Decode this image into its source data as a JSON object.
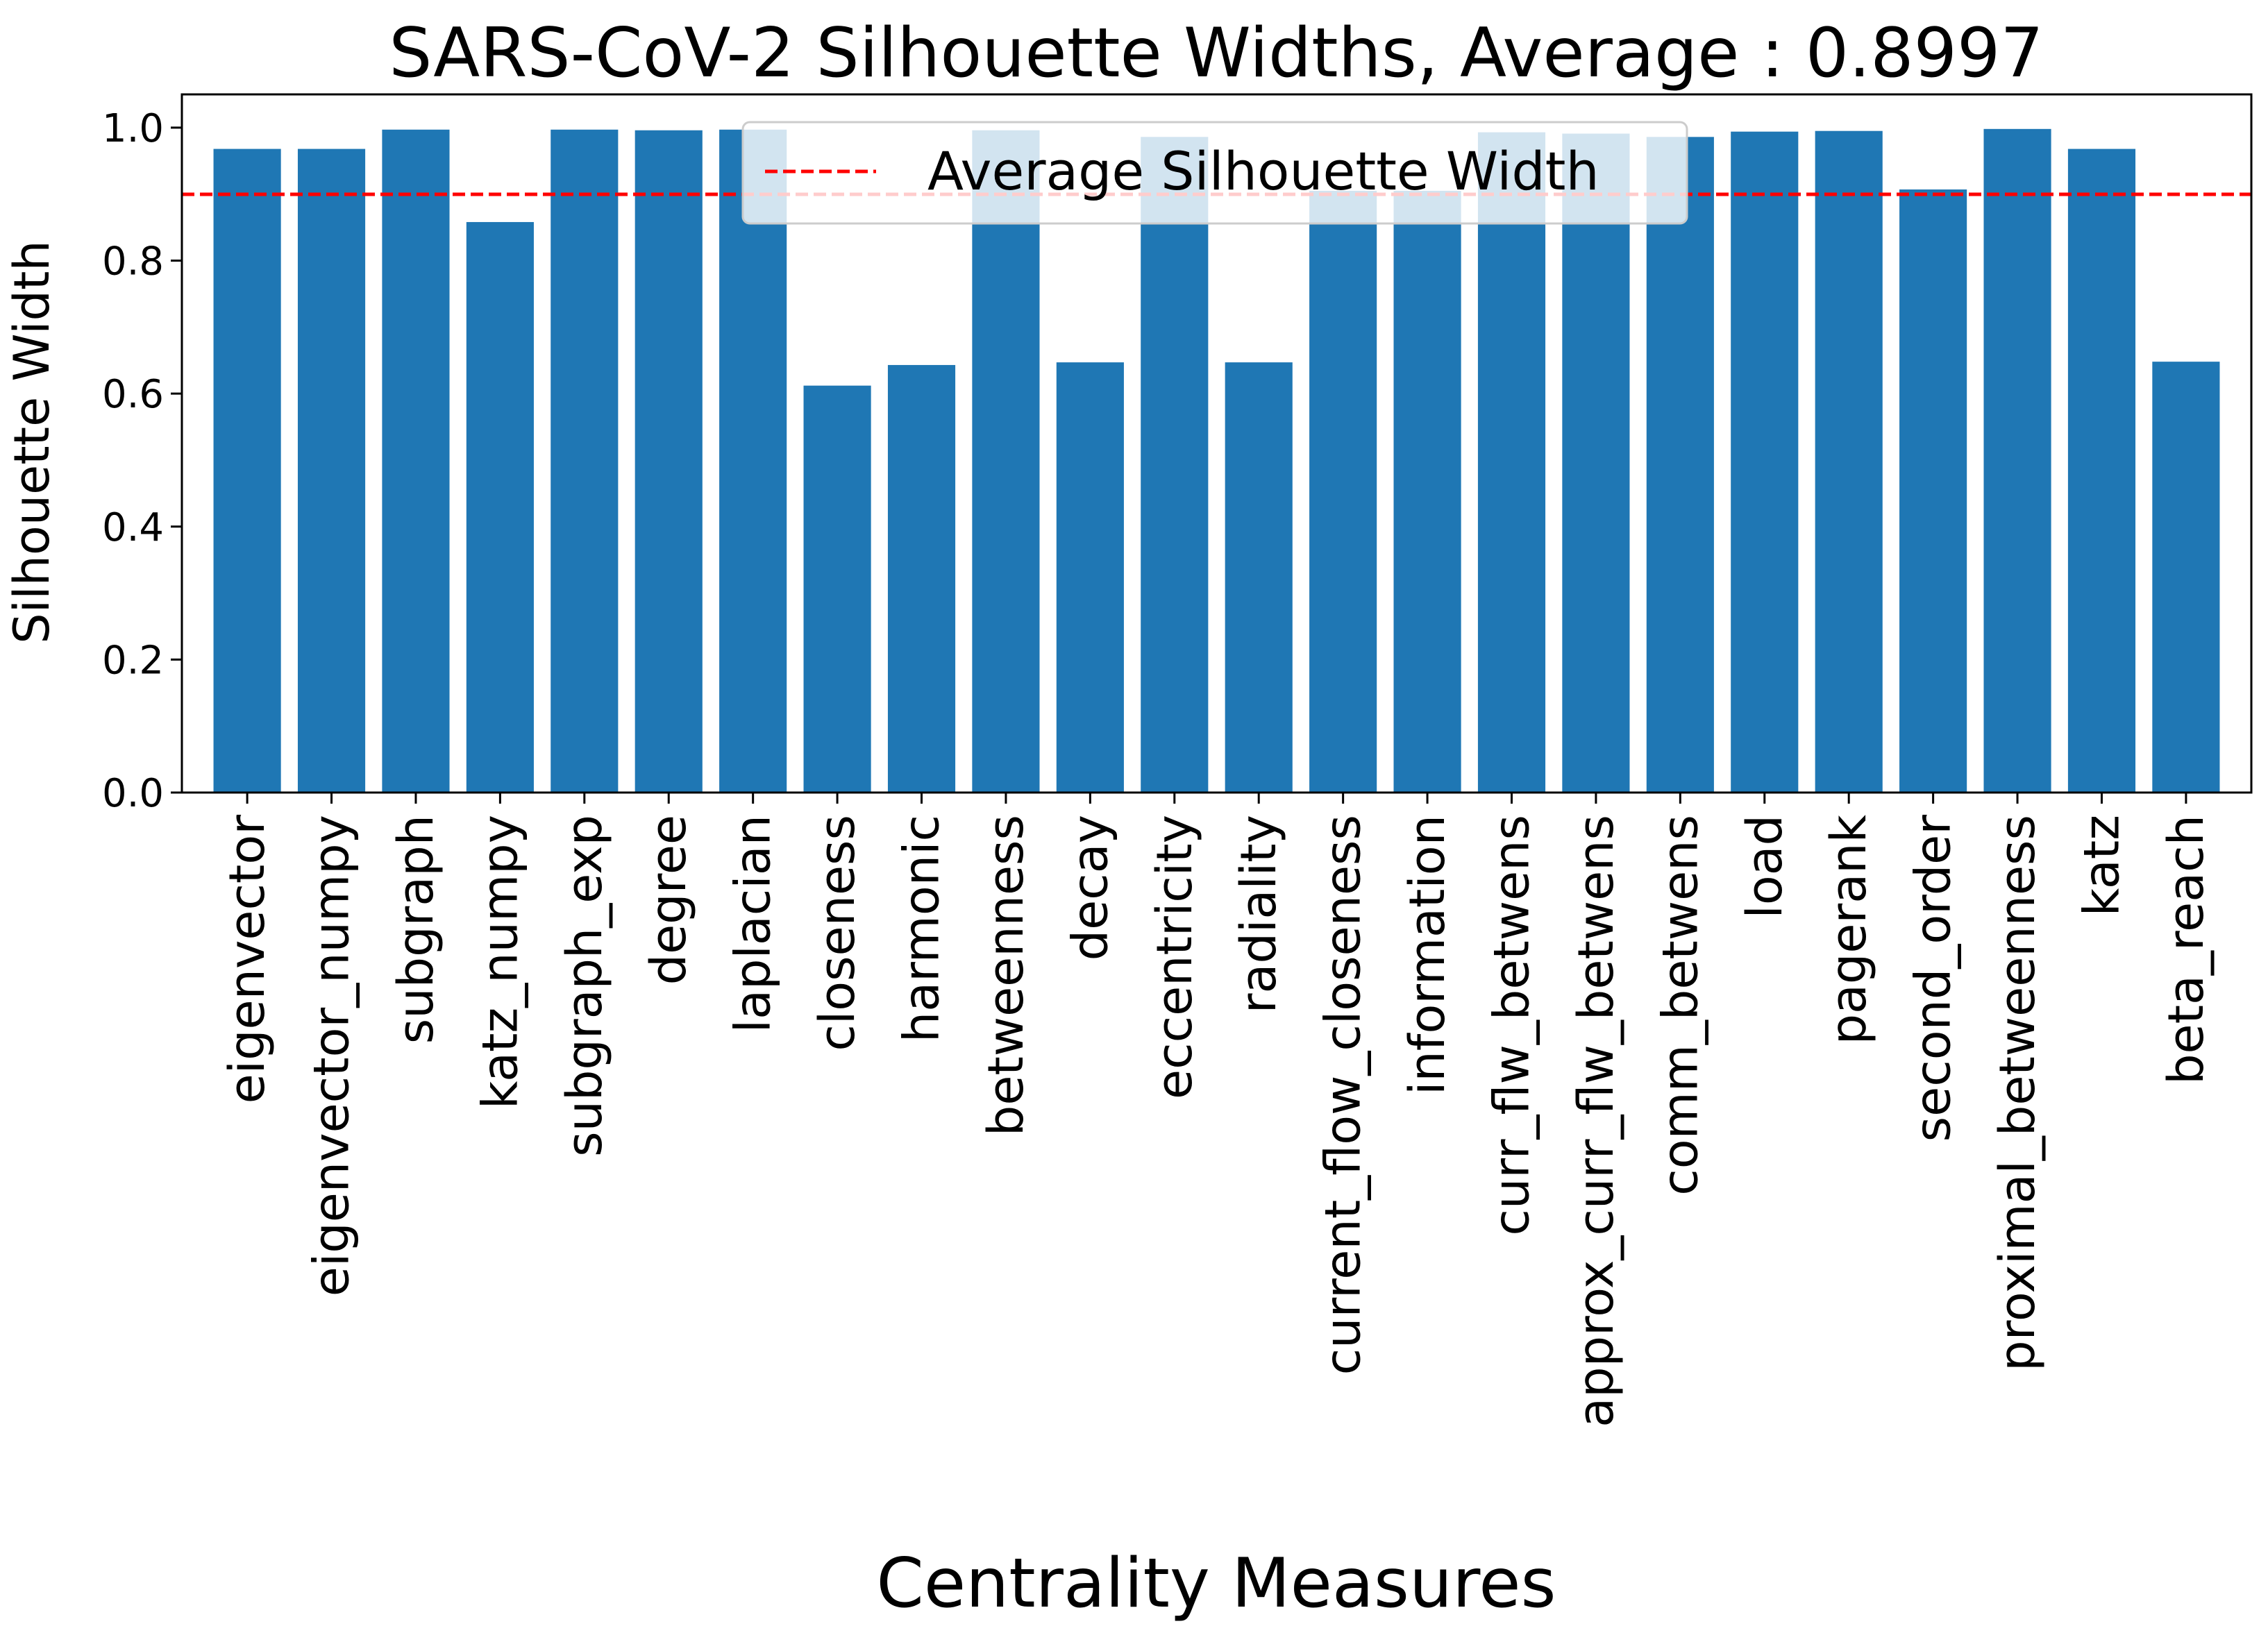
{
  "chart_data": {
    "type": "bar",
    "title": "SARS-CoV-2 Silhouette Widths, Average : 0.8997",
    "xlabel": "Centrality Measures",
    "ylabel": "Silhouette Width",
    "ylim": [
      0,
      1.05
    ],
    "yticks": [
      "0.0",
      "0.2",
      "0.4",
      "0.6",
      "0.8",
      "1.0"
    ],
    "categories": [
      "eigenvector",
      "eigenvector_numpy",
      "subgraph",
      "katz_numpy",
      "subgraph_exp",
      "degree",
      "laplacian",
      "closeness",
      "harmonic",
      "betweenness",
      "decay",
      "eccentricity",
      "radiality",
      "current_flow_closeness",
      "information",
      "curr_flw_betwens",
      "approx_curr_flw_betwens",
      "comm_betwens",
      "load",
      "pagerank",
      "second_order",
      "proximal_betweenness",
      "katz",
      "beta_reach"
    ],
    "values": [
      0.968,
      0.968,
      0.997,
      0.858,
      0.997,
      0.996,
      0.997,
      0.612,
      0.643,
      0.996,
      0.647,
      0.986,
      0.647,
      0.905,
      0.905,
      0.993,
      0.991,
      0.986,
      0.994,
      0.995,
      0.907,
      0.998,
      0.968,
      0.648
    ],
    "bar_color": "#1f77b4",
    "average_line": {
      "value": 0.8997,
      "color": "#ff0000",
      "style": "dashed"
    },
    "legend": {
      "placement": "upper-center",
      "entries": [
        "Average Silhouette Width"
      ]
    },
    "grid": false
  }
}
